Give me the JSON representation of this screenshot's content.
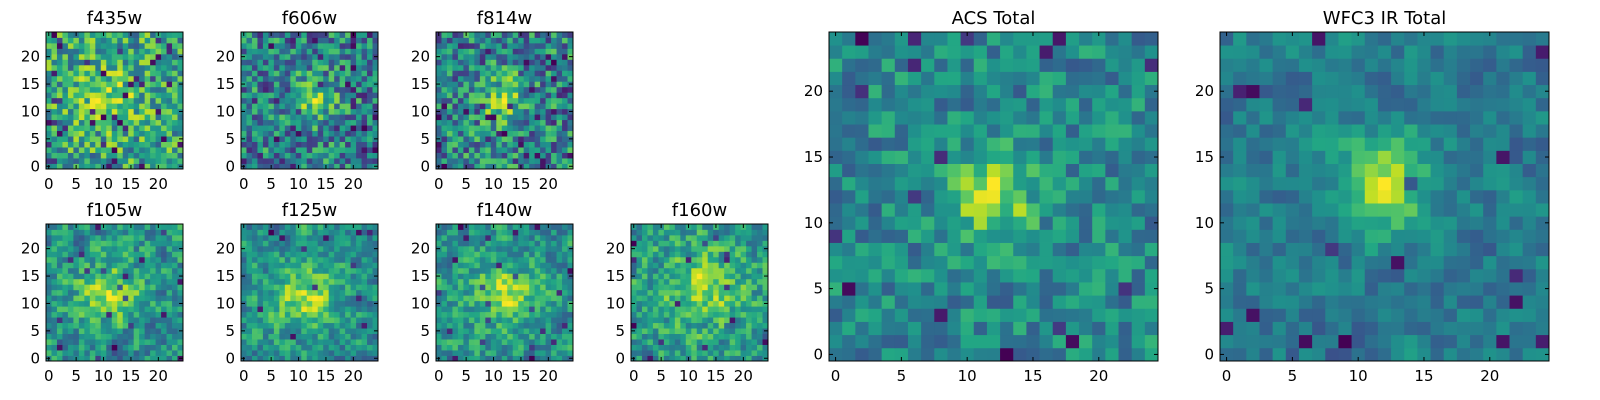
{
  "chart_data": [
    {
      "type": "heatmap",
      "title": "f435w",
      "colormap": "viridis",
      "xlim": [
        -0.5,
        24.5
      ],
      "ylim": [
        -0.5,
        24.5
      ],
      "xticks": [
        0,
        5,
        10,
        15,
        20
      ],
      "yticks": [
        0,
        5,
        10,
        15,
        20
      ],
      "xtick_labels": [
        "0",
        "5",
        "10",
        "15",
        "20"
      ],
      "ytick_labels": [
        "0",
        "5",
        "10",
        "15",
        "20"
      ],
      "grid_size": 25,
      "seed": 11,
      "peak": {
        "center": [
          11,
          13
        ],
        "amplitude": 0.18,
        "width": 4
      },
      "noise": 0.55,
      "base": 0.55,
      "dark_fraction": 0.06
    },
    {
      "type": "heatmap",
      "title": "f606w",
      "colormap": "viridis",
      "xlim": [
        -0.5,
        24.5
      ],
      "ylim": [
        -0.5,
        24.5
      ],
      "xticks": [
        0,
        5,
        10,
        15,
        20
      ],
      "yticks": [
        0,
        5,
        10,
        15,
        20
      ],
      "xtick_labels": [
        "0",
        "5",
        "10",
        "15",
        "20"
      ],
      "ytick_labels": [
        "0",
        "5",
        "10",
        "15",
        "20"
      ],
      "grid_size": 25,
      "seed": 23,
      "peak": {
        "center": [
          12,
          12
        ],
        "amplitude": 0.35,
        "width": 3
      },
      "noise": 0.6,
      "base": 0.45,
      "dark_fraction": 0.07
    },
    {
      "type": "heatmap",
      "title": "f814w",
      "colormap": "viridis",
      "xlim": [
        -0.5,
        24.5
      ],
      "ylim": [
        -0.5,
        24.5
      ],
      "xticks": [
        0,
        5,
        10,
        15,
        20
      ],
      "yticks": [
        0,
        5,
        10,
        15,
        20
      ],
      "xtick_labels": [
        "0",
        "5",
        "10",
        "15",
        "20"
      ],
      "ytick_labels": [
        "0",
        "5",
        "10",
        "15",
        "20"
      ],
      "grid_size": 25,
      "seed": 37,
      "peak": {
        "center": [
          12,
          12
        ],
        "amplitude": 0.3,
        "width": 3
      },
      "noise": 0.6,
      "base": 0.45,
      "dark_fraction": 0.07
    },
    {
      "type": "heatmap",
      "title": "f105w",
      "colormap": "viridis",
      "xlim": [
        -0.5,
        24.5
      ],
      "ylim": [
        -0.5,
        24.5
      ],
      "xticks": [
        0,
        5,
        10,
        15,
        20
      ],
      "yticks": [
        0,
        5,
        10,
        15,
        20
      ],
      "xtick_labels": [
        "0",
        "5",
        "10",
        "15",
        "20"
      ],
      "ytick_labels": [
        "0",
        "5",
        "10",
        "15",
        "20"
      ],
      "grid_size": 25,
      "seed": 41,
      "peak": {
        "center": [
          11,
          12
        ],
        "amplitude": 0.25,
        "width": 4
      },
      "noise": 0.45,
      "base": 0.55,
      "dark_fraction": 0.03,
      "smooth": 1
    },
    {
      "type": "heatmap",
      "title": "f125w",
      "colormap": "viridis",
      "xlim": [
        -0.5,
        24.5
      ],
      "ylim": [
        -0.5,
        24.5
      ],
      "xticks": [
        0,
        5,
        10,
        15,
        20
      ],
      "yticks": [
        0,
        5,
        10,
        15,
        20
      ],
      "xtick_labels": [
        "0",
        "5",
        "10",
        "15",
        "20"
      ],
      "ytick_labels": [
        "0",
        "5",
        "10",
        "15",
        "20"
      ],
      "grid_size": 25,
      "seed": 53,
      "peak": {
        "center": [
          11,
          11
        ],
        "amplitude": 0.28,
        "width": 4
      },
      "noise": 0.45,
      "base": 0.6,
      "dark_fraction": 0.02,
      "smooth": 1
    },
    {
      "type": "heatmap",
      "title": "f140w",
      "colormap": "viridis",
      "xlim": [
        -0.5,
        24.5
      ],
      "ylim": [
        -0.5,
        24.5
      ],
      "xticks": [
        0,
        5,
        10,
        15,
        20
      ],
      "yticks": [
        0,
        5,
        10,
        15,
        20
      ],
      "xtick_labels": [
        "0",
        "5",
        "10",
        "15",
        "20"
      ],
      "ytick_labels": [
        "0",
        "5",
        "10",
        "15",
        "20"
      ],
      "grid_size": 25,
      "seed": 67,
      "peak": {
        "center": [
          12,
          12
        ],
        "amplitude": 0.25,
        "width": 4
      },
      "noise": 0.45,
      "base": 0.6,
      "dark_fraction": 0.03,
      "smooth": 1
    },
    {
      "type": "heatmap",
      "title": "f160w",
      "colormap": "viridis",
      "xlim": [
        -0.5,
        24.5
      ],
      "ylim": [
        -0.5,
        24.5
      ],
      "xticks": [
        0,
        5,
        10,
        15,
        20
      ],
      "yticks": [
        0,
        5,
        10,
        15,
        20
      ],
      "xtick_labels": [
        "0",
        "5",
        "10",
        "15",
        "20"
      ],
      "ytick_labels": [
        "0",
        "5",
        "10",
        "15",
        "20"
      ],
      "grid_size": 25,
      "seed": 79,
      "peak": {
        "center": [
          13,
          13
        ],
        "amplitude": 0.22,
        "width": 4
      },
      "noise": 0.45,
      "base": 0.58,
      "dark_fraction": 0.03,
      "smooth": 1
    },
    {
      "type": "heatmap",
      "title": "ACS Total",
      "colormap": "viridis",
      "xlim": [
        -0.5,
        24.5
      ],
      "ylim": [
        -0.5,
        24.5
      ],
      "xticks": [
        0,
        5,
        10,
        15,
        20
      ],
      "yticks": [
        0,
        5,
        10,
        15,
        20
      ],
      "xtick_labels": [
        "0",
        "5",
        "10",
        "15",
        "20"
      ],
      "ytick_labels": [
        "0",
        "5",
        "10",
        "15",
        "20"
      ],
      "grid_size": 25,
      "seed": 97,
      "peak": {
        "center": [
          12,
          12
        ],
        "amplitude": 0.45,
        "width": 2.2
      },
      "noise": 0.4,
      "base": 0.5,
      "dark_fraction": 0.035
    },
    {
      "type": "heatmap",
      "title": "WFC3 IR Total",
      "colormap": "viridis",
      "xlim": [
        -0.5,
        24.5
      ],
      "ylim": [
        -0.5,
        24.5
      ],
      "xticks": [
        0,
        5,
        10,
        15,
        20
      ],
      "yticks": [
        0,
        5,
        10,
        15,
        20
      ],
      "xtick_labels": [
        "0",
        "5",
        "10",
        "15",
        "20"
      ],
      "ytick_labels": [
        "0",
        "5",
        "10",
        "15",
        "20"
      ],
      "grid_size": 25,
      "seed": 113,
      "peak": {
        "center": [
          12,
          13
        ],
        "amplitude": 0.4,
        "width": 2.5
      },
      "noise": 0.3,
      "base": 0.5,
      "dark_fraction": 0.025,
      "smooth": 1
    }
  ]
}
